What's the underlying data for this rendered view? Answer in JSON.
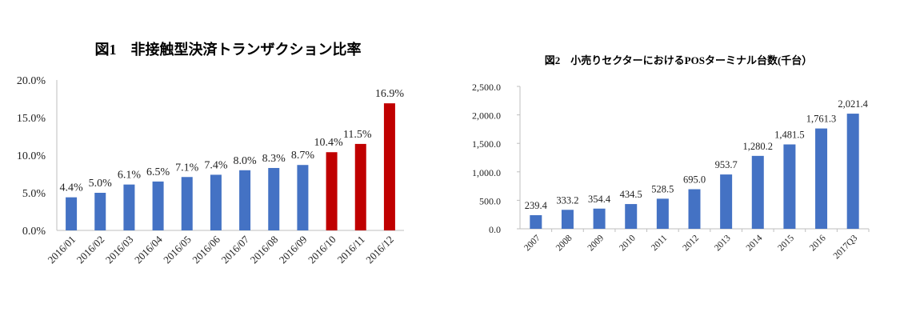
{
  "chart_data": [
    {
      "type": "bar",
      "title": "図1　非接触型決済トランザクション比率",
      "categories": [
        "2016/01",
        "2016/02",
        "2016/03",
        "2016/04",
        "2016/05",
        "2016/06",
        "2016/07",
        "2016/08",
        "2016/09",
        "2016/10",
        "2016/11",
        "2016/12"
      ],
      "values": [
        4.4,
        5.0,
        6.1,
        6.5,
        7.1,
        7.4,
        8.0,
        8.3,
        8.7,
        10.4,
        11.5,
        16.9
      ],
      "data_labels": [
        "4.4%",
        "5.0%",
        "6.1%",
        "6.5%",
        "7.1%",
        "7.4%",
        "8.0%",
        "8.3%",
        "8.7%",
        "10.4%",
        "11.5%",
        "16.9%"
      ],
      "bar_colors": [
        "#4472C4",
        "#4472C4",
        "#4472C4",
        "#4472C4",
        "#4472C4",
        "#4472C4",
        "#4472C4",
        "#4472C4",
        "#4472C4",
        "#C00000",
        "#C00000",
        "#C00000"
      ],
      "yticks": [
        0,
        5,
        10,
        15,
        20
      ],
      "ytick_labels": [
        "0.0%",
        "5.0%",
        "10.0%",
        "15.0%",
        "20.0%"
      ],
      "ylim": [
        0,
        20
      ],
      "xlabel": "",
      "ylabel": "",
      "grid": false
    },
    {
      "type": "bar",
      "title": "図2　小売りセクターにおけるPOSターミナル台数(千台）",
      "categories": [
        "2007",
        "2008",
        "2009",
        "2010",
        "2011",
        "2012",
        "2013",
        "2014",
        "2015",
        "2016",
        "2017Q3"
      ],
      "values": [
        239.4,
        333.2,
        354.4,
        434.5,
        528.5,
        695.0,
        953.7,
        1280.2,
        1481.5,
        1761.3,
        2021.4
      ],
      "data_labels": [
        "239.4",
        "333.2",
        "354.4",
        "434.5",
        "528.5",
        "695.0",
        "953.7",
        "1,280.2",
        "1,481.5",
        "1,761.3",
        "2,021.4"
      ],
      "bar_colors": [
        "#4472C4"
      ],
      "yticks": [
        0,
        500,
        1000,
        1500,
        2000,
        2500
      ],
      "ytick_labels": [
        "0.0",
        "500.0",
        "1,000.0",
        "1,500.0",
        "2,000.0",
        "2,500.0"
      ],
      "ylim": [
        0,
        2500
      ],
      "xlabel": "",
      "ylabel": "",
      "grid": false
    }
  ]
}
